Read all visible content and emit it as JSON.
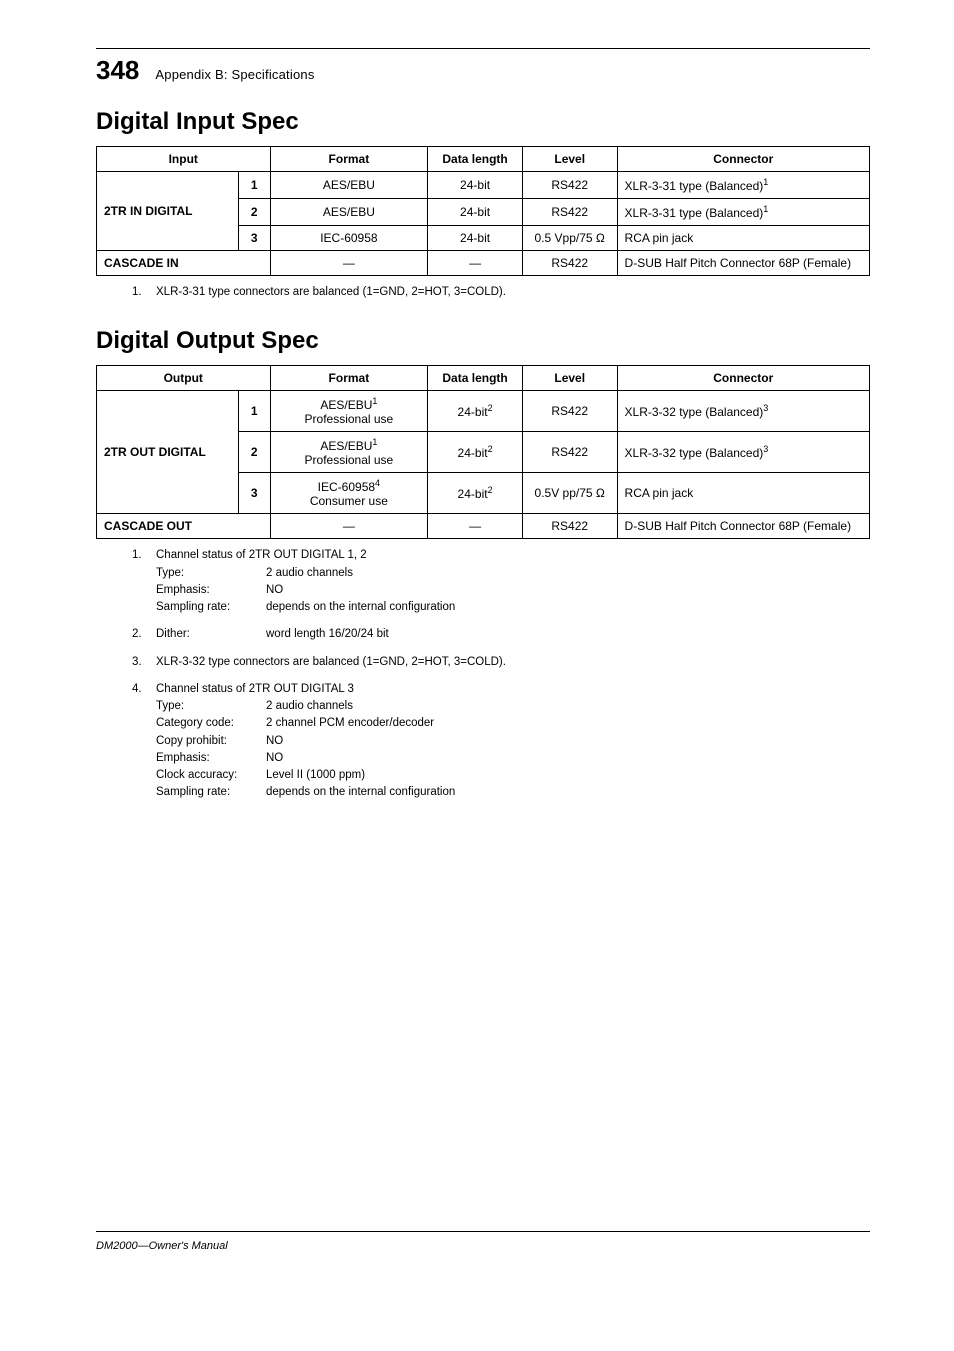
{
  "page": {
    "number": "348",
    "chapter": "Appendix B: Specifications",
    "manual": "DM2000—Owner's Manual"
  },
  "section1": {
    "title": "Digital Input Spec",
    "headers": [
      "Input",
      "Format",
      "Data length",
      "Level",
      "Connector"
    ],
    "rowgroup_label": "2TR IN DIGITAL",
    "rows": [
      {
        "sub": "1",
        "format": "AES/EBU",
        "len": "24-bit",
        "level": "RS422",
        "conn": "XLR-3-31 type (Balanced)",
        "conn_sup": "1"
      },
      {
        "sub": "2",
        "format": "AES/EBU",
        "len": "24-bit",
        "level": "RS422",
        "conn": "XLR-3-31 type (Balanced)",
        "conn_sup": "1"
      },
      {
        "sub": "3",
        "format": "IEC-60958",
        "len": "24-bit",
        "level": "0.5 Vpp/75 Ω",
        "conn": "RCA pin jack",
        "conn_sup": ""
      }
    ],
    "cascade": {
      "label": "CASCADE IN",
      "format": "—",
      "len": "—",
      "level": "RS422",
      "conn": "D-SUB Half Pitch Connector 68P (Female)"
    },
    "footnotes": [
      {
        "n": "1.",
        "text": "XLR-3-31 type connectors are balanced (1=GND, 2=HOT, 3=COLD)."
      }
    ]
  },
  "section2": {
    "title": "Digital Output Spec",
    "headers": [
      "Output",
      "Format",
      "Data length",
      "Level",
      "Connector"
    ],
    "rowgroup_label": "2TR OUT DIGITAL",
    "rows": [
      {
        "sub": "1",
        "format": "AES/EBU",
        "format_sup": "1",
        "format2": "Professional use",
        "len": "24-bit",
        "len_sup": "2",
        "level": "RS422",
        "conn": "XLR-3-32 type (Balanced)",
        "conn_sup": "3"
      },
      {
        "sub": "2",
        "format": "AES/EBU",
        "format_sup": "1",
        "format2": "Professional use",
        "len": "24-bit",
        "len_sup": "2",
        "level": "RS422",
        "conn": "XLR-3-32 type (Balanced)",
        "conn_sup": "3"
      },
      {
        "sub": "3",
        "format": "IEC-60958",
        "format_sup": "4",
        "format2": "Consumer use",
        "len": "24-bit",
        "len_sup": "2",
        "level": "0.5V pp/75 Ω",
        "conn": "RCA pin jack",
        "conn_sup": ""
      }
    ],
    "cascade": {
      "label": "CASCADE OUT",
      "format": "—",
      "len": "—",
      "level": "RS422",
      "conn": "D-SUB Half Pitch Connector 68P (Female)"
    },
    "footnotes": [
      {
        "n": "1.",
        "lead": "Channel status of 2TR OUT DIGITAL 1, 2",
        "kv": [
          {
            "k": "Type:",
            "v": "2 audio channels"
          },
          {
            "k": "Emphasis:",
            "v": "NO"
          },
          {
            "k": "Sampling rate:",
            "v": "depends on the internal configuration"
          }
        ]
      },
      {
        "n": "2.",
        "kv": [
          {
            "k": "Dither:",
            "v": "word length 16/20/24 bit"
          }
        ]
      },
      {
        "n": "3.",
        "lead": "XLR-3-32 type connectors are balanced (1=GND, 2=HOT, 3=COLD)."
      },
      {
        "n": "4.",
        "lead": "Channel status of 2TR OUT DIGITAL 3",
        "kv": [
          {
            "k": "Type:",
            "v": "2 audio channels"
          },
          {
            "k": "Category code:",
            "v": "2 channel PCM encoder/decoder"
          },
          {
            "k": "Copy prohibit:",
            "v": "NO"
          },
          {
            "k": "Emphasis:",
            "v": "NO"
          },
          {
            "k": "Clock accuracy:",
            "v": "Level II (1000 ppm)"
          },
          {
            "k": "Sampling rate:",
            "v": "depends on the internal configuration"
          }
        ]
      }
    ]
  }
}
